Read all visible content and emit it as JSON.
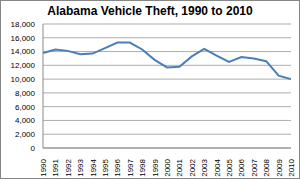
{
  "chart_data": {
    "type": "line",
    "title": "Alabama Vehicle Theft, 1990 to 2010",
    "categories": [
      "1990",
      "1991",
      "1992",
      "1993",
      "1994",
      "1995",
      "1996",
      "1997",
      "1998",
      "1999",
      "2000",
      "2001",
      "2002",
      "2003",
      "2004",
      "2005",
      "2006",
      "2007",
      "2008",
      "2009",
      "2010"
    ],
    "values": [
      13800,
      14300,
      14100,
      13600,
      13700,
      14500,
      15300,
      15300,
      14300,
      12800,
      11700,
      11800,
      13300,
      14400,
      13400,
      12500,
      13200,
      13000,
      12600,
      10500,
      10000
    ],
    "color": "#4a7ebb",
    "ylim": [
      0,
      18000
    ],
    "yticks": [
      0,
      {
        "value": 2000,
        "label": "2,000"
      },
      {
        "value": 4000,
        "label": "4,000"
      },
      {
        "value": 6000,
        "label": "6,000"
      },
      {
        "value": 8000,
        "label": "8,000"
      },
      {
        "value": 10000,
        "label": "10,000"
      },
      {
        "value": 12000,
        "label": "12,000"
      },
      {
        "value": 14000,
        "label": "14,000"
      },
      {
        "value": 16000,
        "label": "16,000"
      },
      {
        "value": 18000,
        "label": "18,000"
      }
    ],
    "grid": true
  }
}
